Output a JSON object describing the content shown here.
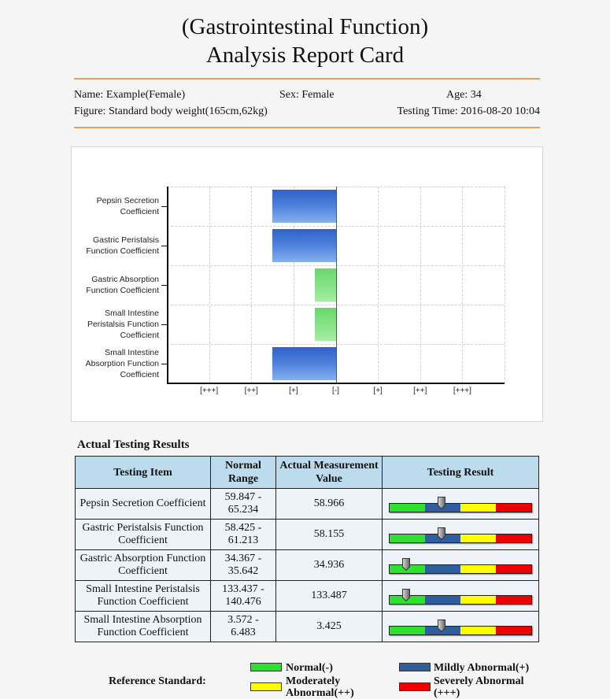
{
  "header": {
    "title_line1": "(Gastrointestinal Function)",
    "title_line2": "Analysis Report Card"
  },
  "patient": {
    "name": "Name: Example(Female)",
    "sex": "Sex: Female",
    "age": "Age: 34",
    "figure": "Figure: Standard body weight(165cm,62kg)",
    "testing_time": "Testing Time: 2016-08-20 10:04"
  },
  "colors": {
    "accent_rule": "#e8a15a",
    "normal": "#2fe02f",
    "mild": "#2f5e9e",
    "moderate": "#ffff00",
    "severe": "#ee0000",
    "bar_blue": "#3f72d4",
    "bar_green": "#7ee07e",
    "table_header": "#bcdcee"
  },
  "chart_data": {
    "type": "bar",
    "orientation": "horizontal",
    "title": "",
    "xlabel": "",
    "ylabel": "",
    "categories": [
      "Pepsin Secretion Coefficient",
      "Gastric Peristalsis Function Coefficient",
      "Gastric Absorption Function Coefficient",
      "Small Intestine Peristalsis Function Coefficient",
      "Small Intestine Absorption Function Coefficient"
    ],
    "category_label_lines": [
      [
        "Pepsin Secretion",
        "Coefficient"
      ],
      [
        "Gastric Peristalsis",
        "Function Coefficient"
      ],
      [
        "Gastric Absorption",
        "Function Coefficient"
      ],
      [
        "Small Intestine",
        "Peristalsis Function",
        "Coefficient"
      ],
      [
        "Small Intestine",
        "Absorption Function",
        "Coefficient"
      ]
    ],
    "values": [
      -1.5,
      -1.5,
      -0.5,
      -0.5,
      -1.5
    ],
    "bar_colors": [
      "blue",
      "blue",
      "green",
      "green",
      "blue"
    ],
    "x_ticks": [
      -3,
      -2,
      -1,
      0,
      1,
      2,
      3
    ],
    "x_tick_labels": [
      "[+++]",
      "[++]",
      "[+]",
      "[-]",
      "[+]",
      "[++]",
      "[+++]"
    ],
    "xlim": [
      -4,
      4
    ],
    "grid": true,
    "legend": null
  },
  "results": {
    "section_title": "Actual Testing Results",
    "headers": {
      "item": "Testing Item",
      "range": "Normal Range",
      "value": "Actual Measurement Value",
      "result": "Testing Result"
    },
    "rows": [
      {
        "item": "Pepsin Secretion Coefficient",
        "range": "59.847 - 65.234",
        "value": "58.966",
        "level": "Mildly Abnormal(+)",
        "marker_pos": 0.37
      },
      {
        "item": "Gastric Peristalsis Function Coefficient",
        "range": "58.425 - 61.213",
        "value": "58.155",
        "level": "Mildly Abnormal(+)",
        "marker_pos": 0.37
      },
      {
        "item": "Gastric Absorption Function Coefficient",
        "range": "34.367 - 35.642",
        "value": "34.936",
        "level": "Normal(-)",
        "marker_pos": 0.12
      },
      {
        "item": "Small Intestine Peristalsis Function Coefficient",
        "range": "133.437 - 140.476",
        "value": "133.487",
        "level": "Normal(-)",
        "marker_pos": 0.12
      },
      {
        "item": "Small Intestine Absorption Function Coefficient",
        "range": "3.572 - 6.483",
        "value": "3.425",
        "level": "Mildly Abnormal(+)",
        "marker_pos": 0.37
      }
    ]
  },
  "reference": {
    "label": "Reference Standard:",
    "items": [
      {
        "label": "Normal(-)",
        "color": "#2fe02f"
      },
      {
        "label": "Mildly Abnormal(+)",
        "color": "#2f5e9e"
      },
      {
        "label": "Moderately Abnormal(++)",
        "color": "#ffff00"
      },
      {
        "label": "Severely Abnormal (+++)",
        "color": "#ee0000"
      }
    ]
  }
}
